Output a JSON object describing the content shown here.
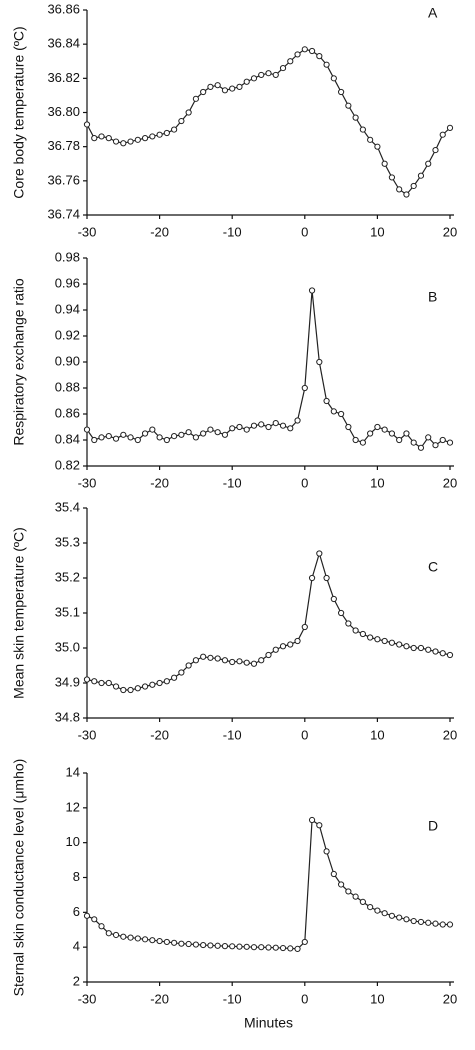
{
  "chart_data": [
    {
      "type": "line",
      "panel_label": "A",
      "ylabel": "Core body temperature (ºC)",
      "color": "#222222",
      "x": [
        -30,
        -29,
        -28,
        -27,
        -26,
        -25,
        -24,
        -23,
        -22,
        -21,
        -20,
        -19,
        -18,
        -17,
        -16,
        -15,
        -14,
        -13,
        -12,
        -11,
        -10,
        -9,
        -8,
        -7,
        -6,
        -5,
        -4,
        -3,
        -2,
        -1,
        0,
        1,
        2,
        3,
        4,
        5,
        6,
        7,
        8,
        9,
        10,
        11,
        12,
        13,
        14,
        15,
        16,
        17,
        18,
        19,
        20
      ],
      "values": [
        36.793,
        36.785,
        36.786,
        36.785,
        36.783,
        36.782,
        36.783,
        36.784,
        36.785,
        36.786,
        36.787,
        36.788,
        36.79,
        36.795,
        36.8,
        36.808,
        36.812,
        36.815,
        36.816,
        36.813,
        36.814,
        36.815,
        36.818,
        36.82,
        36.822,
        36.823,
        36.822,
        36.826,
        36.83,
        36.834,
        36.837,
        36.836,
        36.833,
        36.828,
        36.82,
        36.812,
        36.804,
        36.797,
        36.79,
        36.784,
        36.78,
        36.77,
        36.762,
        36.755,
        36.752,
        36.757,
        36.763,
        36.77,
        36.778,
        36.787,
        36.791
      ],
      "xlim": [
        -30,
        20
      ],
      "xticks": [
        -30,
        -20,
        -10,
        0,
        10,
        20
      ],
      "ylim": [
        36.74,
        36.86
      ],
      "yticks": [
        36.74,
        36.76,
        36.78,
        {
          "value": 36.8,
          "label": "36.80"
        },
        36.82,
        36.84,
        36.86
      ]
    },
    {
      "type": "line",
      "panel_label": "B",
      "ylabel": "Respiratory exchange ratio",
      "color": "#222222",
      "x": [
        -30,
        -29,
        -28,
        -27,
        -26,
        -25,
        -24,
        -23,
        -22,
        -21,
        -20,
        -19,
        -18,
        -17,
        -16,
        -15,
        -14,
        -13,
        -12,
        -11,
        -10,
        -9,
        -8,
        -7,
        -6,
        -5,
        -4,
        -3,
        -2,
        -1,
        0,
        1,
        2,
        3,
        4,
        5,
        6,
        7,
        8,
        9,
        10,
        11,
        12,
        13,
        14,
        15,
        16,
        17,
        18,
        19,
        20
      ],
      "values": [
        0.848,
        0.84,
        0.842,
        0.843,
        0.841,
        0.844,
        0.842,
        0.84,
        0.845,
        0.848,
        0.842,
        0.84,
        0.843,
        0.844,
        0.846,
        0.842,
        0.845,
        0.848,
        0.846,
        0.844,
        0.849,
        0.85,
        0.848,
        0.851,
        0.852,
        0.85,
        0.853,
        0.851,
        0.849,
        0.855,
        0.88,
        0.955,
        0.9,
        0.87,
        0.862,
        0.86,
        0.85,
        0.84,
        0.838,
        0.845,
        0.85,
        0.848,
        0.845,
        0.84,
        0.845,
        0.838,
        0.834,
        0.842,
        0.836,
        0.84,
        0.838
      ],
      "xlim": [
        -30,
        20
      ],
      "xticks": [
        -30,
        -20,
        -10,
        0,
        10,
        20
      ],
      "ylim": [
        0.82,
        0.98
      ],
      "yticks": [
        0.82,
        0.84,
        0.86,
        0.88,
        {
          "value": 0.9,
          "label": "0.90"
        },
        0.92,
        0.94,
        0.96,
        0.98
      ]
    },
    {
      "type": "line",
      "panel_label": "C",
      "ylabel": "Mean skin temperature (ºC)",
      "color": "#222222",
      "x": [
        -30,
        -29,
        -28,
        -27,
        -26,
        -25,
        -24,
        -23,
        -22,
        -21,
        -20,
        -19,
        -18,
        -17,
        -16,
        -15,
        -14,
        -13,
        -12,
        -11,
        -10,
        -9,
        -8,
        -7,
        -6,
        -5,
        -4,
        -3,
        -2,
        -1,
        0,
        1,
        2,
        3,
        4,
        5,
        6,
        7,
        8,
        9,
        10,
        11,
        12,
        13,
        14,
        15,
        16,
        17,
        18,
        19,
        20
      ],
      "values": [
        34.91,
        34.905,
        34.9,
        34.9,
        34.89,
        34.88,
        34.88,
        34.885,
        34.89,
        34.895,
        34.9,
        34.905,
        34.915,
        34.93,
        34.95,
        34.965,
        34.975,
        34.972,
        34.97,
        34.965,
        34.96,
        34.962,
        34.958,
        34.955,
        34.965,
        34.98,
        34.995,
        35.005,
        35.01,
        35.02,
        35.06,
        35.2,
        35.27,
        35.2,
        35.14,
        35.1,
        35.07,
        35.05,
        35.04,
        35.03,
        35.025,
        35.02,
        35.015,
        35.01,
        35.005,
        35.0,
        35.0,
        34.995,
        34.99,
        34.985,
        34.98
      ],
      "xlim": [
        -30,
        20
      ],
      "xticks": [
        -30,
        -20,
        -10,
        0,
        10,
        20
      ],
      "ylim": [
        34.8,
        35.4
      ],
      "yticks": [
        34.8,
        34.9,
        {
          "value": 35.0,
          "label": "35.0"
        },
        35.1,
        35.2,
        35.3,
        35.4
      ]
    },
    {
      "type": "line",
      "panel_label": "D",
      "ylabel": "Sternal skin conductance level (μmho)",
      "xlabel": "Minutes",
      "color": "#222222",
      "x": [
        -30,
        -29,
        -28,
        -27,
        -26,
        -25,
        -24,
        -23,
        -22,
        -21,
        -20,
        -19,
        -18,
        -17,
        -16,
        -15,
        -14,
        -13,
        -12,
        -11,
        -10,
        -9,
        -8,
        -7,
        -6,
        -5,
        -4,
        -3,
        -2,
        -1,
        0,
        1,
        2,
        3,
        4,
        5,
        6,
        7,
        8,
        9,
        10,
        11,
        12,
        13,
        14,
        15,
        16,
        17,
        18,
        19,
        20
      ],
      "values": [
        5.8,
        5.6,
        5.2,
        4.8,
        4.7,
        4.6,
        4.55,
        4.5,
        4.45,
        4.4,
        4.35,
        4.3,
        4.25,
        4.2,
        4.18,
        4.15,
        4.12,
        4.1,
        4.08,
        4.06,
        4.05,
        4.03,
        4.02,
        4.0,
        4.0,
        3.98,
        3.97,
        3.95,
        3.93,
        3.9,
        4.3,
        11.3,
        11.0,
        9.5,
        8.2,
        7.6,
        7.2,
        6.9,
        6.6,
        6.3,
        6.1,
        5.95,
        5.8,
        5.7,
        5.6,
        5.5,
        5.45,
        5.4,
        5.35,
        5.3,
        5.3
      ],
      "xlim": [
        -30,
        20
      ],
      "xticks": [
        -30,
        -20,
        -10,
        0,
        10,
        20
      ],
      "ylim": [
        2,
        14
      ],
      "yticks": [
        2,
        4,
        6,
        8,
        10,
        12,
        14
      ]
    }
  ]
}
